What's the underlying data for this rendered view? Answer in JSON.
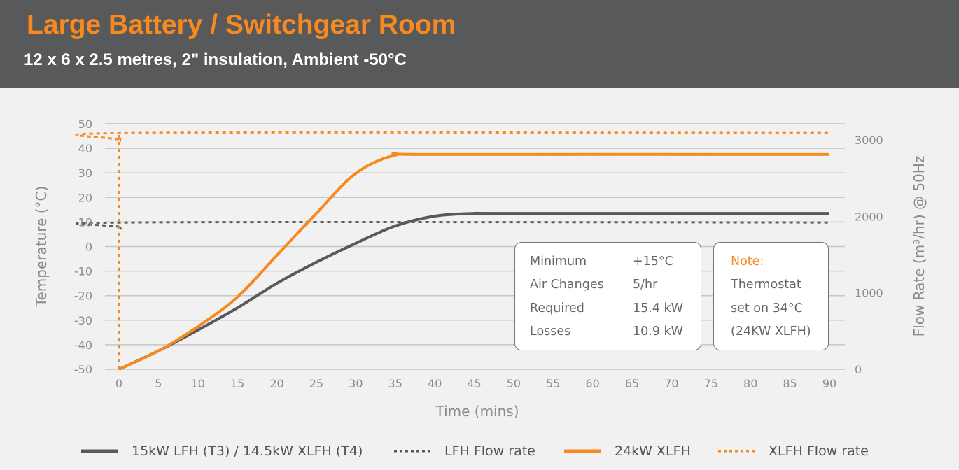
{
  "header": {
    "title": "Large Battery / Switchgear Room",
    "subtitle": "12 x 6 x 2.5 metres, 2\" insulation, Ambient -50°C"
  },
  "info_box": {
    "rows": [
      {
        "label": "Minimum",
        "value": "+15°C"
      },
      {
        "label": "Air Changes",
        "value": "5/hr"
      },
      {
        "label": "Required",
        "value": "15.4 kW"
      },
      {
        "label": "Losses",
        "value": "10.9 kW"
      }
    ]
  },
  "note_box": {
    "title": "Note:",
    "lines": [
      "Thermostat",
      "set on 34°C",
      "(24KW XLFH)"
    ]
  },
  "colors": {
    "orange": "#f7891f",
    "grey": "#58595b"
  },
  "chart_data": {
    "type": "line",
    "title": "Large Battery / Switchgear Room",
    "xlabel": "Time (mins)",
    "ylabel": "Temperature (°C)",
    "y2label": "Flow Rate (m³/hr) @ 50Hz",
    "xlim": [
      0,
      90
    ],
    "ylim": [
      -50,
      50
    ],
    "y2lim": [
      0,
      4000
    ],
    "xticks": [
      0,
      5,
      10,
      15,
      20,
      25,
      30,
      35,
      40,
      45,
      50,
      55,
      60,
      65,
      70,
      75,
      80,
      85,
      90
    ],
    "yticks": [
      -50,
      -40,
      -30,
      -20,
      -10,
      0,
      10,
      20,
      30,
      40,
      50
    ],
    "y2ticks": [
      0,
      1000,
      2000,
      3000
    ],
    "grid": true,
    "legend_position": "bottom",
    "series": [
      {
        "name": "15kW LFH (T3) / 14.5kW XLFH (T4)",
        "axis": "left",
        "style": "solid",
        "color": "#58595b",
        "x": [
          0,
          5,
          10,
          15,
          20,
          25,
          30,
          35,
          40,
          45,
          50,
          90
        ],
        "y": [
          -50,
          -42.5,
          -34,
          -25,
          -15,
          -6.4,
          1.3,
          8.4,
          12.4,
          13.5,
          13.5,
          13.5
        ]
      },
      {
        "name": "LFH Flow rate",
        "axis": "right",
        "style": "dotted",
        "color": "#58595b",
        "x": [
          0,
          0,
          0.4,
          1.5,
          90
        ],
        "y": [
          0,
          1650,
          1850,
          1920,
          1920
        ]
      },
      {
        "name": "24kW XLFH",
        "axis": "left",
        "style": "solid",
        "color": "#f7891f",
        "x": [
          0,
          5,
          10,
          15,
          20,
          25,
          30,
          35,
          40,
          90
        ],
        "y": [
          -50,
          -42.5,
          -32.6,
          -20.6,
          -3.6,
          13.5,
          29.8,
          37.2,
          37.5,
          37.5
        ]
      },
      {
        "name": "XLFH Flow rate",
        "axis": "right",
        "style": "dotted",
        "color": "#f7891f",
        "x": [
          0,
          0,
          0.3,
          1.5,
          90
        ],
        "y": [
          0,
          2800,
          2990,
          3090,
          3090
        ]
      }
    ]
  }
}
